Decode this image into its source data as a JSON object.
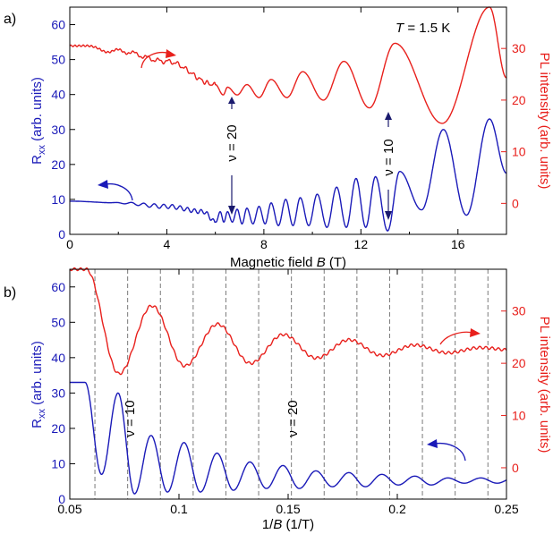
{
  "colors": {
    "rxx": "#1a1ab8",
    "pl": "#e8201c",
    "axis": "#000000",
    "guide": "#7a7a7a"
  },
  "chart_data": [
    {
      "panel": "a)",
      "type": "line",
      "xlabel": "Magnetic field B (T)",
      "xlabel_parts": [
        "Magnetic field ",
        "B",
        " (T)"
      ],
      "ylabel_left": "Rxx (arb. units)",
      "ylabel_left_parts": [
        "R",
        "xx",
        " (arb. units)"
      ],
      "ylabel_right": "PL intensity (arb. units)",
      "xlim": [
        0,
        18
      ],
      "ylim_left": [
        0,
        65
      ],
      "ylim_right": [
        -6,
        38
      ],
      "xticks": [
        0,
        4,
        8,
        12,
        16
      ],
      "xticks_minor": [
        2,
        6,
        10,
        14,
        18
      ],
      "xtick_labels": [
        "0",
        "4",
        "8",
        "12",
        "16"
      ],
      "yticks_left": [
        0,
        10,
        20,
        30,
        40,
        50,
        60
      ],
      "ytick_labels_left": [
        "0",
        "10",
        "20",
        "30",
        "40",
        "50",
        "60"
      ],
      "yticks_right": [
        0,
        10,
        20,
        30
      ],
      "ytick_labels_right": [
        "0",
        "10",
        "20",
        "30"
      ],
      "annotation_temperature": "T = 1.5 K",
      "annotation_temperature_parts": [
        "T",
        " = 1.5 K"
      ],
      "filling_labels": [
        {
          "text": "ν = 20",
          "B": 6.7
        },
        {
          "text": "ν = 10",
          "B": 13.4
        }
      ],
      "series": [
        {
          "axis": "left",
          "color_key": "rxx",
          "oscillation_peaks_B": [
            6.2,
            6.5,
            6.9,
            7.3,
            7.8,
            8.3,
            8.9,
            9.5,
            10.2,
            11.0,
            11.8,
            12.6,
            13.6,
            15.4,
            17.3
          ],
          "peak_values": [
            6.5,
            6.5,
            7.2,
            7.5,
            8.0,
            9.0,
            10.0,
            10.5,
            11.5,
            13.5,
            16.0,
            16.5,
            18.0,
            30.0,
            33.0
          ],
          "minima_values": [
            3.5,
            3.5,
            3.5,
            3.0,
            3.0,
            3.0,
            2.5,
            2.5,
            2.5,
            2.0,
            2.0,
            2.0,
            1.0,
            7.0,
            5.5
          ],
          "baseline": [
            [
              0,
              9.5
            ],
            [
              2,
              9.0
            ],
            [
              4,
              8.0
            ],
            [
              5.5,
              6.5
            ]
          ]
        },
        {
          "axis": "right",
          "color_key": "pl",
          "oscillation_peaks_B": [
            6.5,
            7.3,
            8.3,
            9.6,
            11.3,
            13.4,
            17.3
          ],
          "peak_values": [
            22.5,
            23.0,
            24.0,
            25.5,
            27.5,
            31.0,
            38.0
          ],
          "minima_values": [
            21.0,
            21.0,
            20.5,
            20.5,
            20.0,
            18.5,
            15.5
          ],
          "baseline": [
            [
              0,
              30.5
            ],
            [
              2,
              29.5
            ],
            [
              4,
              27.5
            ],
            [
              6,
              23.0
            ]
          ]
        }
      ]
    },
    {
      "panel": "b)",
      "type": "line",
      "xlabel": "1/B (1/T)",
      "xlabel_parts": [
        "1/",
        "B",
        " (1/T)"
      ],
      "ylabel_left": "Rxx (arb. units)",
      "ylabel_left_parts": [
        "R",
        "xx",
        " (arb. units)"
      ],
      "ylabel_right": "PL intensity (arb. units)",
      "xlim": [
        0.05,
        0.25
      ],
      "ylim_left": [
        0,
        65
      ],
      "ylim_right": [
        -6,
        38
      ],
      "xticks": [
        0.05,
        0.1,
        0.15,
        0.2,
        0.25
      ],
      "xtick_labels": [
        "0.05",
        "0.1",
        "0.15",
        "0.2",
        "0.25"
      ],
      "yticks_left": [
        0,
        10,
        20,
        30,
        40,
        50,
        60
      ],
      "ytick_labels_left": [
        "0",
        "10",
        "20",
        "30",
        "40",
        "50",
        "60"
      ],
      "yticks_right": [
        0,
        10,
        20,
        30
      ],
      "ytick_labels_right": [
        "0",
        "10",
        "20",
        "30"
      ],
      "filling_labels": [
        {
          "text": "ν = 10",
          "invB": 0.077
        },
        {
          "text": "ν = 20",
          "invB": 0.152
        }
      ],
      "guide_lines_invB": [
        0.0615,
        0.0765,
        0.0915,
        0.1065,
        0.1215,
        0.1365,
        0.1515,
        0.1665,
        0.1815,
        0.1965,
        0.2115,
        0.2265,
        0.2415
      ],
      "series": [
        {
          "axis": "left",
          "color_key": "rxx",
          "period": 0.0151,
          "start": 0.057,
          "peak_values": [
            33.0,
            30.0,
            18.0,
            16.0,
            13.0,
            10.5,
            9.5,
            8.0,
            7.5,
            7.0,
            6.5,
            6.0,
            6.0,
            6.0,
            6.5,
            6.5,
            7.5,
            7.5
          ],
          "minima_values": [
            5.0,
            7.0,
            1.5,
            2.0,
            2.0,
            2.5,
            3.0,
            3.0,
            3.5,
            3.5,
            4.0,
            4.0,
            4.5,
            4.5,
            5.0,
            5.0,
            5.5,
            5.5
          ]
        },
        {
          "axis": "right",
          "color_key": "pl",
          "period": 0.0301,
          "start": 0.0575,
          "peak_values": [
            38.0,
            31.0,
            27.5,
            25.5,
            24.5,
            23.5,
            23.0,
            23.0
          ],
          "minima_values": [
            15.0,
            18.0,
            19.5,
            20.0,
            21.0,
            21.5,
            22.0,
            22.5
          ]
        }
      ]
    }
  ]
}
